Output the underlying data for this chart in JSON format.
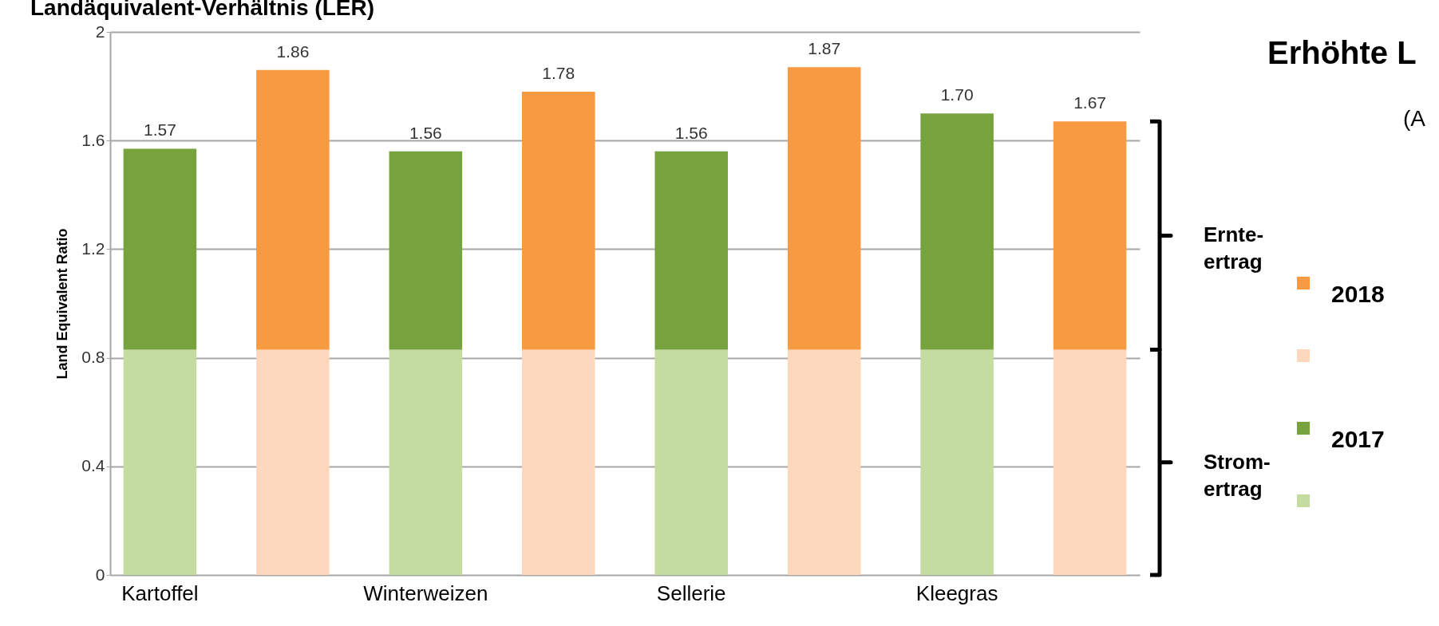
{
  "chart_data": {
    "type": "bar",
    "title": "Landäquivalent-Verhältnis (LER)",
    "ylabel": "Land Equivalent Ratio",
    "categories": [
      "Kartoffel",
      null,
      "Winterweizen",
      null,
      "Sellerie",
      null,
      "Kleegras",
      null
    ],
    "stacked": true,
    "series": [
      {
        "name": "Strom-\nertrag",
        "colors": [
          "#c4dca0",
          "#fdd8bc",
          "#c4dca0",
          "#fdd8bc",
          "#c4dca0",
          "#fdd8bc",
          "#c4dca0",
          "#fdd8bc"
        ],
        "values": [
          0.83,
          0.83,
          0.83,
          0.83,
          0.83,
          0.83,
          0.83,
          0.83
        ]
      },
      {
        "name": "Ernte-\nertrag",
        "colors": [
          "#77a33f",
          "#f79a42",
          "#77a33f",
          "#f79a42",
          "#77a33f",
          "#f79a42",
          "#77a33f",
          "#f79a42"
        ],
        "values": [
          0.74,
          1.03,
          0.73,
          0.95,
          0.73,
          1.04,
          0.87,
          0.84
        ]
      }
    ],
    "totals": [
      "1.57",
      "1.86",
      "1.56",
      "1.78",
      "1.56",
      "1.87",
      "1.70",
      "1.67"
    ],
    "ylim": [
      0,
      2
    ],
    "yticks": [
      0,
      0.4,
      0.8,
      1.2,
      1.6,
      2
    ],
    "grid": "y",
    "legend": "right",
    "annotations": [
      "2018",
      "2017",
      "Erhöhte L",
      "(A"
    ]
  }
}
